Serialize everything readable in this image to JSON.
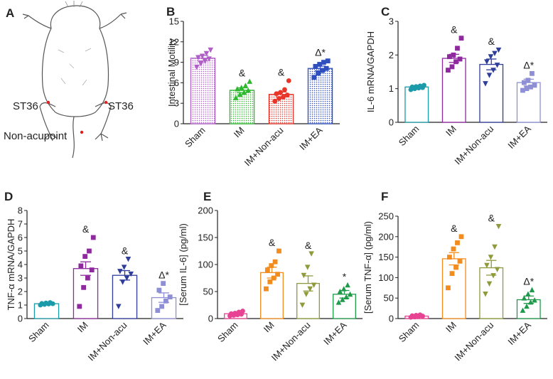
{
  "panel_a": {
    "letter": "A",
    "labels": {
      "left_point": "ST36",
      "right_point": "ST36",
      "non_point": "Non-acupoint"
    },
    "point_color": "#e02020"
  },
  "chart_data": [
    {
      "id": "B",
      "letter": "B",
      "type": "bar",
      "title": "",
      "xlabel": "",
      "ylabel": "Intestinal Motility",
      "ylim": [
        0,
        15
      ],
      "yticks": [
        "0",
        "3",
        "6",
        "9",
        "12",
        "15"
      ],
      "categories": [
        "Sham",
        "IM",
        "IM+Non-acu",
        "IM+EA"
      ],
      "values": [
        9.6,
        4.9,
        4.3,
        8.1
      ],
      "errors": [
        0.4,
        0.35,
        0.35,
        0.35
      ],
      "annotations": [
        "",
        "&",
        "&",
        "Δ*"
      ],
      "colors": [
        "#b05ec8",
        "#2fb82f",
        "#e8352a",
        "#2f4fbf"
      ],
      "marker": [
        "triangle-down",
        "triangle-up",
        "circle",
        "square"
      ],
      "bar_style": "dotted-fill",
      "points": [
        [
          8.3,
          8.8,
          9.2,
          9.5,
          9.7,
          9.9,
          10.3,
          10.8
        ],
        [
          3.8,
          4.3,
          4.6,
          4.9,
          5.1,
          5.3,
          5.6,
          6.2
        ],
        [
          3.3,
          3.7,
          3.9,
          4.2,
          4.4,
          4.6,
          5.0,
          6.3
        ],
        [
          6.8,
          7.4,
          7.8,
          8.1,
          8.4,
          8.7,
          9.0,
          9.2
        ]
      ]
    },
    {
      "id": "C",
      "letter": "C",
      "type": "bar",
      "title": "",
      "xlabel": "",
      "ylabel": "IL-6 mRNA/GAPDH",
      "ylim": [
        0,
        3
      ],
      "yticks": [
        "0",
        "1",
        "2",
        "3"
      ],
      "categories": [
        "Sham",
        "IM",
        "IM+Non-acu",
        "IM+EA"
      ],
      "values": [
        1.05,
        1.9,
        1.72,
        1.18
      ],
      "errors": [
        0.04,
        0.12,
        0.16,
        0.1
      ],
      "annotations": [
        "",
        "&",
        "&",
        "Δ*"
      ],
      "colors": [
        "#1b9aaa",
        "#8e2a9e",
        "#2f3d9a",
        "#8f8fd6"
      ],
      "marker": [
        "circle",
        "square",
        "triangle-down",
        "square"
      ],
      "bar_style": "outline",
      "points": [
        [
          0.97,
          1.0,
          1.02,
          1.03,
          1.05,
          1.06,
          1.08,
          1.1
        ],
        [
          1.55,
          1.65,
          1.8,
          1.88,
          1.95,
          2.0,
          2.2,
          2.5
        ],
        [
          1.15,
          1.4,
          1.55,
          1.7,
          1.8,
          1.95,
          2.05,
          2.15
        ],
        [
          0.95,
          1.0,
          1.05,
          1.1,
          1.18,
          1.25,
          1.45
        ]
      ]
    },
    {
      "id": "D",
      "letter": "D",
      "type": "bar",
      "title": "",
      "xlabel": "",
      "ylabel": "TNF-α mRNA/GAPDH",
      "ylim": [
        0,
        8
      ],
      "yticks": [
        "0",
        "1",
        "2",
        "3",
        "4",
        "5",
        "6",
        "7",
        "8"
      ],
      "categories": [
        "Sham",
        "IM",
        "IM+Non-acu",
        "IM+EA"
      ],
      "values": [
        1.1,
        3.7,
        3.2,
        1.55
      ],
      "errors": [
        0.05,
        0.5,
        0.35,
        0.35
      ],
      "annotations": [
        "",
        "&",
        "&",
        "Δ*"
      ],
      "colors": [
        "#1b9aaa",
        "#8e2a9e",
        "#2f3d9a",
        "#8f8fd6"
      ],
      "marker": [
        "circle",
        "square",
        "triangle-down",
        "square"
      ],
      "bar_style": "outline",
      "points": [
        [
          1.0,
          1.05,
          1.08,
          1.1,
          1.12,
          1.15,
          1.18
        ],
        [
          0.9,
          2.3,
          3.0,
          3.6,
          3.9,
          4.6,
          5.0,
          6.0
        ],
        [
          0.9,
          2.7,
          3.0,
          3.3,
          3.5,
          3.8,
          4.4
        ],
        [
          0.6,
          0.9,
          1.3,
          1.6,
          2.1,
          2.6
        ]
      ]
    },
    {
      "id": "E",
      "letter": "E",
      "type": "bar",
      "title": "",
      "xlabel": "",
      "ylabel": "[Serum IL-6]  (pg/ml)",
      "ylim": [
        0,
        200
      ],
      "yticks": [
        "0",
        "50",
        "100",
        "150",
        "200"
      ],
      "categories": [
        "Sham",
        "IM",
        "IM+Non-acu",
        "IM+EA"
      ],
      "values": [
        9,
        85,
        65,
        45
      ],
      "errors": [
        1.5,
        10,
        14,
        7
      ],
      "annotations": [
        "",
        "&",
        "&",
        "*"
      ],
      "colors": [
        "#e84393",
        "#f28c1e",
        "#8f9a3a",
        "#1f9a4a"
      ],
      "marker": [
        "circle",
        "square",
        "triangle-down",
        "triangle-up"
      ],
      "bar_style": "outline",
      "points": [
        [
          5,
          6,
          7,
          8,
          9,
          10,
          12,
          14
        ],
        [
          55,
          68,
          75,
          82,
          90,
          98,
          105,
          125
        ],
        [
          25,
          45,
          55,
          62,
          80,
          95,
          120
        ],
        [
          30,
          35,
          40,
          45,
          50,
          55,
          62
        ]
      ]
    },
    {
      "id": "F",
      "letter": "F",
      "type": "bar",
      "title": "",
      "xlabel": "",
      "ylabel": "[Serum TNF-α]  (pg/ml)",
      "ylim": [
        0,
        250
      ],
      "yticks": [
        "0",
        "50",
        "100",
        "150",
        "200",
        "250"
      ],
      "categories": [
        "Sham",
        "IM",
        "IM+Non-acu",
        "IM+EA"
      ],
      "values": [
        6,
        146,
        124,
        46
      ],
      "errors": [
        1.5,
        15,
        18,
        9
      ],
      "annotations": [
        "",
        "&",
        "&",
        "Δ*"
      ],
      "colors": [
        "#e84393",
        "#f28c1e",
        "#8f9a3a",
        "#1f9a4a"
      ],
      "marker": [
        "circle",
        "square",
        "triangle-down",
        "triangle-up"
      ],
      "bar_style": "outline",
      "points": [
        [
          3,
          4,
          5,
          6,
          7,
          8,
          9
        ],
        [
          75,
          110,
          125,
          140,
          150,
          170,
          185,
          200
        ],
        [
          60,
          85,
          105,
          120,
          130,
          150,
          175,
          225
        ],
        [
          20,
          30,
          40,
          45,
          50,
          60,
          70
        ]
      ]
    }
  ]
}
